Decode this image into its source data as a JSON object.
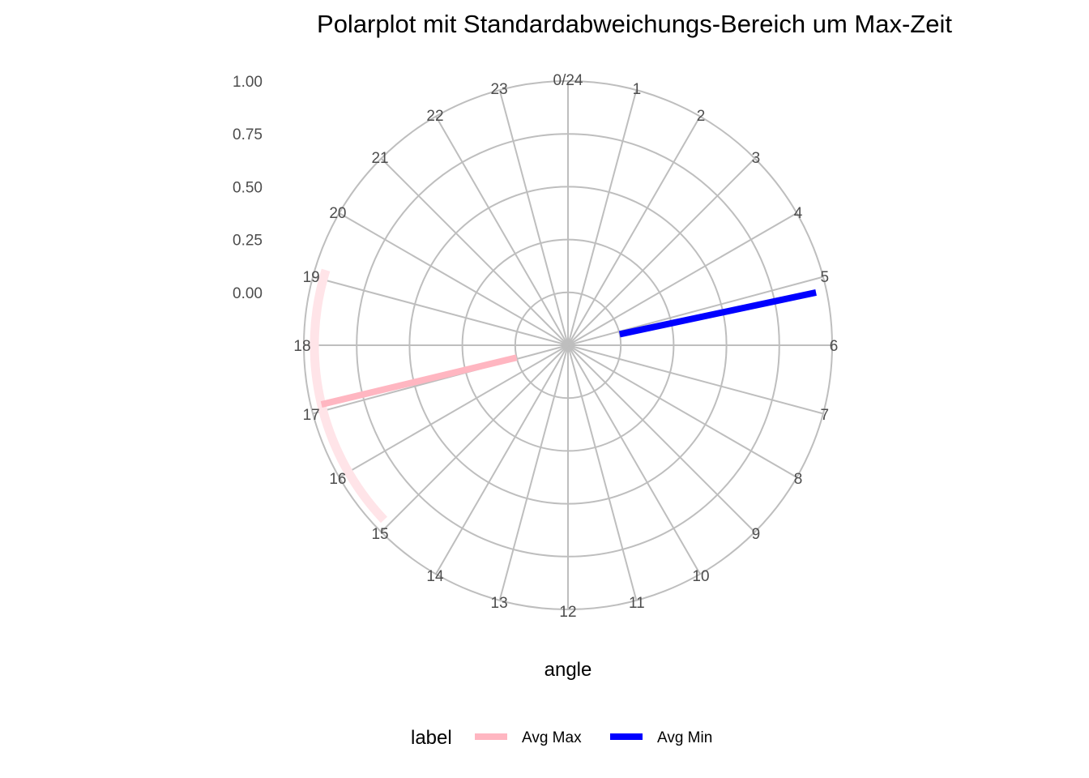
{
  "chart_data": {
    "type": "polar-line",
    "title": "Polarplot mit Standardabweichungs-Bereich um Max-Zeit",
    "xlabel": "angle",
    "hour_labels": [
      "0/24",
      "1",
      "2",
      "3",
      "4",
      "5",
      "6",
      "7",
      "8",
      "9",
      "10",
      "11",
      "12",
      "13",
      "14",
      "15",
      "16",
      "17",
      "18",
      "19",
      "20",
      "21",
      "22",
      "23"
    ],
    "radial_ticks": [
      "0.00",
      "0.25",
      "0.50",
      "0.75",
      "1.00"
    ],
    "radial_values": [
      0,
      0.25,
      0.5,
      0.75,
      1.0
    ],
    "rlim": [
      -0.25,
      1.0
    ],
    "grid": true,
    "legend": {
      "title": "label",
      "position": "bottom",
      "entries": [
        {
          "name": "Avg Max",
          "color": "#FFB6C1"
        },
        {
          "name": "Avg Min",
          "color": "#0000FF"
        }
      ]
    },
    "series": [
      {
        "name": "Avg Max",
        "color": "#FFB6C1",
        "hour": 17.1,
        "from": 0,
        "to": 0.95
      },
      {
        "name": "Avg Min",
        "color": "#0000FF",
        "hour": 5.2,
        "from": 0,
        "to": 0.95
      }
    ],
    "sd_band": {
      "color": "#FFE4E8",
      "hour_start": 15.1,
      "hour_end": 19.15,
      "r": 0.95
    }
  }
}
